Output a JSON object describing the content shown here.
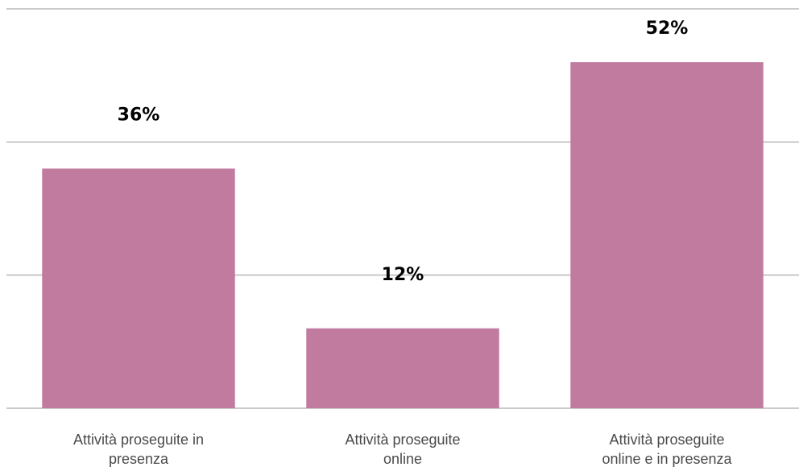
{
  "chart_data": {
    "type": "bar",
    "categories": [
      [
        "Attività proseguite in",
        "presenza"
      ],
      [
        "Attività proseguite",
        "online"
      ],
      [
        "Attività proseguite",
        "online e in presenza"
      ]
    ],
    "values": [
      36,
      12,
      52
    ],
    "data_labels": [
      "36%",
      "12%",
      "52%"
    ],
    "ylim": [
      0,
      60
    ],
    "grid": true,
    "bar_color": "#C17B9F",
    "title": "",
    "xlabel": "",
    "ylabel": ""
  }
}
